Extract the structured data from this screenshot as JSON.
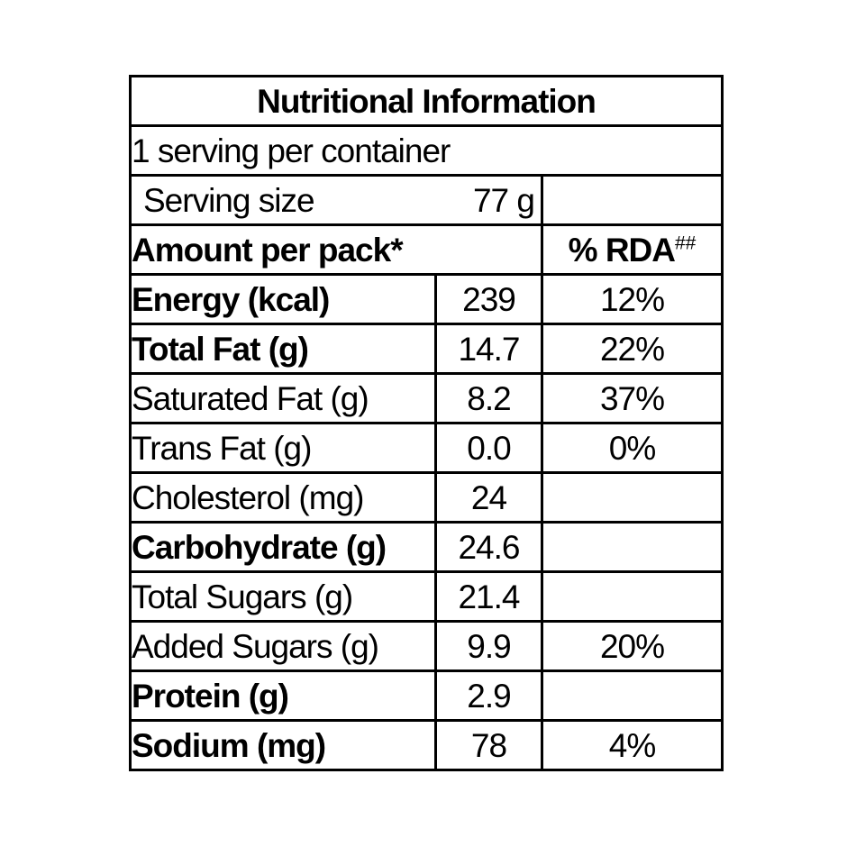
{
  "table": {
    "title": "Nutritional Information",
    "servings_line": "1 serving per container",
    "serving_size": {
      "label": "Serving size",
      "value": "77 g"
    },
    "header": {
      "amount_label": "Amount per pack*",
      "rda_label": "% RDA",
      "rda_superscript": "##"
    },
    "rows": [
      {
        "label": "Energy (kcal)",
        "amount": "239",
        "rda": "12%",
        "bold": true
      },
      {
        "label": "Total Fat (g)",
        "amount": "14.7",
        "rda": "22%",
        "bold": true
      },
      {
        "label": "Saturated Fat (g)",
        "amount": "8.2",
        "rda": "37%",
        "bold": false
      },
      {
        "label": "Trans Fat (g)",
        "amount": "0.0",
        "rda": "0%",
        "bold": false
      },
      {
        "label": "Cholesterol (mg)",
        "amount": "24",
        "rda": "",
        "bold": false
      },
      {
        "label": "Carbohydrate (g)",
        "amount": "24.6",
        "rda": "",
        "bold": true
      },
      {
        "label": "Total Sugars (g)",
        "amount": "21.4",
        "rda": "",
        "bold": false
      },
      {
        "label": "Added Sugars (g)",
        "amount": "9.9",
        "rda": "20%",
        "bold": false
      },
      {
        "label": "Protein (g)",
        "amount": "2.9",
        "rda": "",
        "bold": true
      },
      {
        "label": "Sodium (mg)",
        "amount": "78",
        "rda": "4%",
        "bold": true
      }
    ],
    "colors": {
      "border": "#000000",
      "text": "#000000",
      "background": "#ffffff"
    }
  }
}
